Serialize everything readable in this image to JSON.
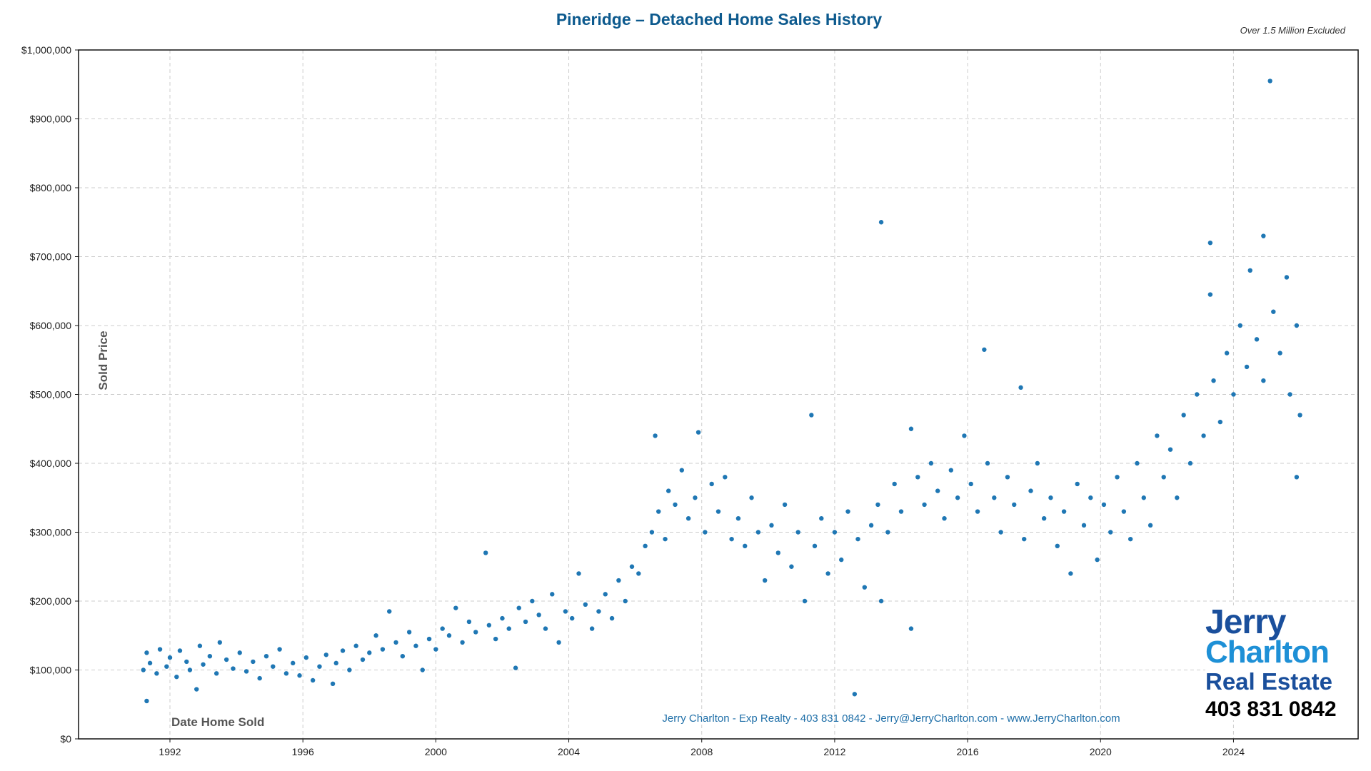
{
  "chart_data": {
    "type": "scatter",
    "title": "Pineridge – Detached Home Sales History",
    "subtitle": "Over 1.5 Million Excluded",
    "xlabel": "Date Home Sold",
    "ylabel": "Sold Price",
    "xlim": [
      1989.25,
      2027.75
    ],
    "ylim": [
      0,
      1000000
    ],
    "xticks": [
      "1992",
      "1996",
      "2000",
      "2004",
      "2008",
      "2012",
      "2016",
      "2020",
      "2024"
    ],
    "yticks": [
      "$0",
      "$100,000",
      "$200,000",
      "$300,000",
      "$400,000",
      "$500,000",
      "$600,000",
      "$700,000",
      "$800,000",
      "$900,000",
      "$1,000,000"
    ],
    "grid": true,
    "point_color": "#1f77b4",
    "footer": "Jerry Charlton - Exp Realty - 403 831 0842 - Jerry@JerryCharlton.com - www.JerryCharlton.com",
    "points": [
      [
        1991.2,
        100000
      ],
      [
        1991.3,
        125000
      ],
      [
        1991.3,
        55000
      ],
      [
        1991.4,
        110000
      ],
      [
        1991.6,
        95000
      ],
      [
        1991.7,
        130000
      ],
      [
        1991.9,
        105000
      ],
      [
        1992.0,
        118000
      ],
      [
        1992.2,
        90000
      ],
      [
        1992.3,
        128000
      ],
      [
        1992.5,
        112000
      ],
      [
        1992.6,
        100000
      ],
      [
        1992.8,
        72000
      ],
      [
        1992.9,
        135000
      ],
      [
        1993.0,
        108000
      ],
      [
        1993.2,
        120000
      ],
      [
        1993.4,
        95000
      ],
      [
        1993.5,
        140000
      ],
      [
        1993.7,
        115000
      ],
      [
        1993.9,
        102000
      ],
      [
        1994.1,
        125000
      ],
      [
        1994.3,
        98000
      ],
      [
        1994.5,
        112000
      ],
      [
        1994.7,
        88000
      ],
      [
        1994.9,
        120000
      ],
      [
        1995.1,
        105000
      ],
      [
        1995.3,
        130000
      ],
      [
        1995.5,
        95000
      ],
      [
        1995.7,
        110000
      ],
      [
        1995.9,
        92000
      ],
      [
        1996.1,
        118000
      ],
      [
        1996.3,
        85000
      ],
      [
        1996.5,
        105000
      ],
      [
        1996.7,
        122000
      ],
      [
        1996.9,
        80000
      ],
      [
        1997.0,
        110000
      ],
      [
        1997.2,
        128000
      ],
      [
        1997.4,
        100000
      ],
      [
        1997.6,
        135000
      ],
      [
        1997.8,
        115000
      ],
      [
        1998.0,
        125000
      ],
      [
        1998.2,
        150000
      ],
      [
        1998.4,
        130000
      ],
      [
        1998.6,
        185000
      ],
      [
        1998.8,
        140000
      ],
      [
        1999.0,
        120000
      ],
      [
        1999.2,
        155000
      ],
      [
        1999.4,
        135000
      ],
      [
        1999.6,
        100000
      ],
      [
        1999.8,
        145000
      ],
      [
        2000.0,
        130000
      ],
      [
        2000.2,
        160000
      ],
      [
        2000.4,
        150000
      ],
      [
        2000.6,
        190000
      ],
      [
        2000.8,
        140000
      ],
      [
        2001.0,
        170000
      ],
      [
        2001.2,
        155000
      ],
      [
        2001.5,
        270000
      ],
      [
        2001.6,
        165000
      ],
      [
        2001.8,
        145000
      ],
      [
        2002.0,
        175000
      ],
      [
        2002.2,
        160000
      ],
      [
        2002.4,
        103000
      ],
      [
        2002.5,
        190000
      ],
      [
        2002.7,
        170000
      ],
      [
        2002.9,
        200000
      ],
      [
        2003.1,
        180000
      ],
      [
        2003.3,
        160000
      ],
      [
        2003.5,
        210000
      ],
      [
        2003.7,
        140000
      ],
      [
        2003.9,
        185000
      ],
      [
        2004.1,
        175000
      ],
      [
        2004.3,
        240000
      ],
      [
        2004.5,
        195000
      ],
      [
        2004.7,
        160000
      ],
      [
        2004.9,
        185000
      ],
      [
        2005.1,
        210000
      ],
      [
        2005.3,
        175000
      ],
      [
        2005.5,
        230000
      ],
      [
        2005.7,
        200000
      ],
      [
        2005.9,
        250000
      ],
      [
        2006.1,
        240000
      ],
      [
        2006.3,
        280000
      ],
      [
        2006.5,
        300000
      ],
      [
        2006.6,
        440000
      ],
      [
        2006.7,
        330000
      ],
      [
        2006.9,
        290000
      ],
      [
        2007.0,
        360000
      ],
      [
        2007.2,
        340000
      ],
      [
        2007.4,
        390000
      ],
      [
        2007.6,
        320000
      ],
      [
        2007.8,
        350000
      ],
      [
        2007.9,
        445000
      ],
      [
        2008.1,
        300000
      ],
      [
        2008.3,
        370000
      ],
      [
        2008.5,
        330000
      ],
      [
        2008.7,
        380000
      ],
      [
        2008.9,
        290000
      ],
      [
        2009.1,
        320000
      ],
      [
        2009.3,
        280000
      ],
      [
        2009.5,
        350000
      ],
      [
        2009.7,
        300000
      ],
      [
        2009.9,
        230000
      ],
      [
        2010.1,
        310000
      ],
      [
        2010.3,
        270000
      ],
      [
        2010.5,
        340000
      ],
      [
        2010.7,
        250000
      ],
      [
        2010.9,
        300000
      ],
      [
        2011.1,
        200000
      ],
      [
        2011.3,
        470000
      ],
      [
        2011.4,
        280000
      ],
      [
        2011.6,
        320000
      ],
      [
        2011.8,
        240000
      ],
      [
        2012.0,
        300000
      ],
      [
        2012.2,
        260000
      ],
      [
        2012.4,
        330000
      ],
      [
        2012.6,
        65000
      ],
      [
        2012.7,
        290000
      ],
      [
        2012.9,
        220000
      ],
      [
        2013.1,
        310000
      ],
      [
        2013.3,
        340000
      ],
      [
        2013.4,
        750000
      ],
      [
        2013.4,
        200000
      ],
      [
        2013.6,
        300000
      ],
      [
        2013.8,
        370000
      ],
      [
        2014.0,
        330000
      ],
      [
        2014.3,
        160000
      ],
      [
        2014.3,
        450000
      ],
      [
        2014.5,
        380000
      ],
      [
        2014.7,
        340000
      ],
      [
        2014.9,
        400000
      ],
      [
        2015.1,
        360000
      ],
      [
        2015.3,
        320000
      ],
      [
        2015.5,
        390000
      ],
      [
        2015.7,
        350000
      ],
      [
        2015.9,
        440000
      ],
      [
        2016.1,
        370000
      ],
      [
        2016.3,
        330000
      ],
      [
        2016.5,
        565000
      ],
      [
        2016.6,
        400000
      ],
      [
        2016.8,
        350000
      ],
      [
        2017.0,
        300000
      ],
      [
        2017.2,
        380000
      ],
      [
        2017.4,
        340000
      ],
      [
        2017.6,
        510000
      ],
      [
        2017.7,
        290000
      ],
      [
        2017.9,
        360000
      ],
      [
        2018.1,
        400000
      ],
      [
        2018.3,
        320000
      ],
      [
        2018.5,
        350000
      ],
      [
        2018.7,
        280000
      ],
      [
        2018.9,
        330000
      ],
      [
        2019.1,
        240000
      ],
      [
        2019.3,
        370000
      ],
      [
        2019.5,
        310000
      ],
      [
        2019.7,
        350000
      ],
      [
        2019.9,
        260000
      ],
      [
        2020.1,
        340000
      ],
      [
        2020.3,
        300000
      ],
      [
        2020.5,
        380000
      ],
      [
        2020.7,
        330000
      ],
      [
        2020.9,
        290000
      ],
      [
        2021.1,
        400000
      ],
      [
        2021.3,
        350000
      ],
      [
        2021.5,
        310000
      ],
      [
        2021.7,
        440000
      ],
      [
        2021.9,
        380000
      ],
      [
        2022.1,
        420000
      ],
      [
        2022.3,
        350000
      ],
      [
        2022.5,
        470000
      ],
      [
        2022.7,
        400000
      ],
      [
        2022.9,
        500000
      ],
      [
        2023.1,
        440000
      ],
      [
        2023.3,
        720000
      ],
      [
        2023.3,
        645000
      ],
      [
        2023.4,
        520000
      ],
      [
        2023.6,
        460000
      ],
      [
        2023.8,
        560000
      ],
      [
        2024.0,
        500000
      ],
      [
        2024.2,
        600000
      ],
      [
        2024.4,
        540000
      ],
      [
        2024.5,
        680000
      ],
      [
        2024.7,
        580000
      ],
      [
        2024.9,
        730000
      ],
      [
        2024.9,
        520000
      ],
      [
        2025.1,
        955000
      ],
      [
        2025.2,
        620000
      ],
      [
        2025.4,
        560000
      ],
      [
        2025.6,
        670000
      ],
      [
        2025.7,
        500000
      ],
      [
        2025.9,
        380000
      ],
      [
        2025.9,
        600000
      ],
      [
        2026.0,
        470000
      ]
    ]
  },
  "logo": {
    "line1": "Jerry",
    "line2": "Charlton",
    "line3": "Real Estate",
    "phone": "403 831 0842"
  }
}
